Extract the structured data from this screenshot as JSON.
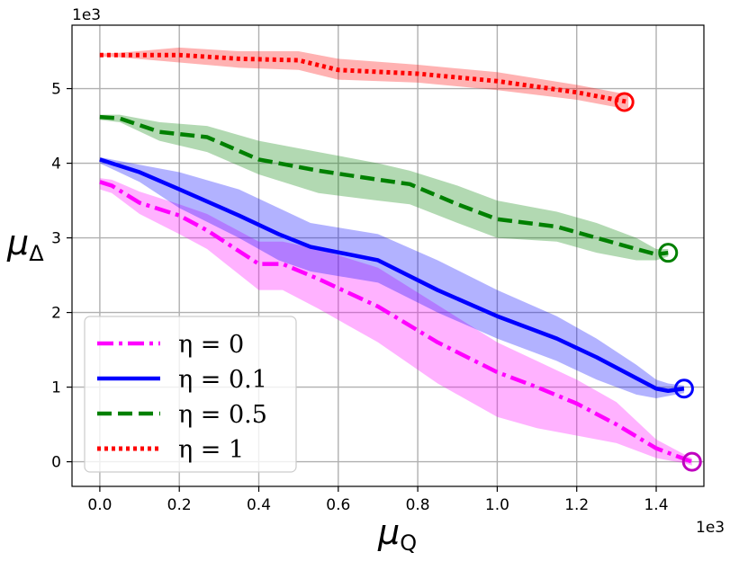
{
  "chart_data": {
    "type": "line",
    "title": "",
    "xlabel": "μ",
    "xlabel_sub": "Q",
    "ylabel": "μ",
    "ylabel_sub": "Δ",
    "x_scale_label": "1e3",
    "y_scale_label": "1e3",
    "xlim": [
      -0.07,
      1.52
    ],
    "ylim": [
      -0.33,
      5.85
    ],
    "x_ticks": [
      0.0,
      0.2,
      0.4,
      0.6,
      0.8,
      1.0,
      1.2,
      1.4
    ],
    "x_tick_labels": [
      "0.0",
      "0.2",
      "0.4",
      "0.6",
      "0.8",
      "1.0",
      "1.2",
      "1.4"
    ],
    "y_ticks": [
      0,
      1,
      2,
      3,
      4,
      5
    ],
    "y_tick_labels": [
      "0",
      "1",
      "2",
      "3",
      "4",
      "5"
    ],
    "grid": true,
    "legend_position": "bottom-left",
    "series": [
      {
        "name": "η = 0",
        "legend_label": "η = 0",
        "color": "#ff00ff",
        "band_color": "#ff00ff",
        "endpoint_color": "#bf00bf",
        "style": "dashdot",
        "x": [
          0.0,
          0.03,
          0.1,
          0.2,
          0.27,
          0.4,
          0.46,
          0.55,
          0.7,
          0.85,
          1.0,
          1.1,
          1.2,
          1.3,
          1.4,
          1.47,
          1.49
        ],
        "y": [
          3.75,
          3.7,
          3.47,
          3.3,
          3.1,
          2.65,
          2.65,
          2.45,
          2.08,
          1.6,
          1.2,
          1.0,
          0.78,
          0.5,
          0.18,
          0.04,
          0.0
        ],
        "upper": [
          3.8,
          3.78,
          3.62,
          3.45,
          3.32,
          2.95,
          2.95,
          2.85,
          2.6,
          2.1,
          1.6,
          1.35,
          1.1,
          0.8,
          0.3,
          0.1,
          0.05
        ],
        "lower": [
          3.65,
          3.6,
          3.32,
          3.05,
          2.85,
          2.3,
          2.3,
          2.05,
          1.6,
          1.05,
          0.6,
          0.45,
          0.35,
          0.25,
          0.05,
          -0.02,
          -0.05
        ],
        "endpoint": [
          1.49,
          0.0
        ]
      },
      {
        "name": "η = 0.1",
        "legend_label": "η = 0.1",
        "color": "#0000ff",
        "band_color": "#0000ff",
        "endpoint_color": "#0000ff",
        "style": "solid",
        "x": [
          0.0,
          0.1,
          0.2,
          0.35,
          0.45,
          0.53,
          0.7,
          0.85,
          1.0,
          1.15,
          1.25,
          1.35,
          1.4,
          1.43,
          1.47
        ],
        "y": [
          4.05,
          3.88,
          3.65,
          3.3,
          3.05,
          2.88,
          2.7,
          2.3,
          1.95,
          1.65,
          1.4,
          1.12,
          0.98,
          0.95,
          0.98
        ],
        "upper": [
          4.08,
          3.98,
          3.88,
          3.65,
          3.4,
          3.2,
          3.05,
          2.7,
          2.3,
          1.95,
          1.65,
          1.3,
          1.1,
          1.05,
          1.02
        ],
        "lower": [
          4.0,
          3.75,
          3.4,
          3.0,
          2.7,
          2.55,
          2.4,
          2.0,
          1.65,
          1.35,
          1.1,
          0.9,
          0.85,
          0.88,
          0.92
        ],
        "endpoint": [
          1.47,
          0.98
        ]
      },
      {
        "name": "η = 0.5",
        "legend_label": "η = 0.5",
        "color": "#008000",
        "band_color": "#008000",
        "endpoint_color": "#008000",
        "style": "dashed",
        "x": [
          0.0,
          0.05,
          0.15,
          0.27,
          0.4,
          0.55,
          0.7,
          0.78,
          0.9,
          1.0,
          1.15,
          1.25,
          1.35,
          1.4,
          1.43
        ],
        "y": [
          4.62,
          4.6,
          4.42,
          4.35,
          4.05,
          3.9,
          3.78,
          3.72,
          3.45,
          3.25,
          3.15,
          3.0,
          2.85,
          2.78,
          2.8
        ],
        "upper": [
          4.65,
          4.65,
          4.55,
          4.5,
          4.3,
          4.15,
          4.0,
          3.9,
          3.7,
          3.5,
          3.35,
          3.2,
          3.0,
          2.85,
          2.85
        ],
        "lower": [
          4.58,
          4.55,
          4.3,
          4.15,
          3.85,
          3.6,
          3.5,
          3.45,
          3.2,
          3.0,
          2.95,
          2.8,
          2.7,
          2.7,
          2.75
        ],
        "endpoint": [
          1.43,
          2.8
        ]
      },
      {
        "name": "η = 1",
        "legend_label": "η = 1",
        "color": "#ff0000",
        "band_color": "#ff0000",
        "endpoint_color": "#ff0000",
        "style": "dotted",
        "x": [
          0.0,
          0.05,
          0.2,
          0.35,
          0.5,
          0.6,
          0.8,
          1.0,
          1.2,
          1.3,
          1.33
        ],
        "y": [
          5.45,
          5.45,
          5.45,
          5.4,
          5.38,
          5.25,
          5.2,
          5.1,
          4.95,
          4.85,
          4.82
        ],
        "upper": [
          5.47,
          5.48,
          5.55,
          5.5,
          5.5,
          5.4,
          5.32,
          5.22,
          5.05,
          4.95,
          4.92
        ],
        "lower": [
          5.43,
          5.42,
          5.35,
          5.28,
          5.25,
          5.12,
          5.08,
          4.98,
          4.85,
          4.75,
          4.72
        ],
        "endpoint": [
          1.32,
          4.82
        ]
      }
    ]
  }
}
